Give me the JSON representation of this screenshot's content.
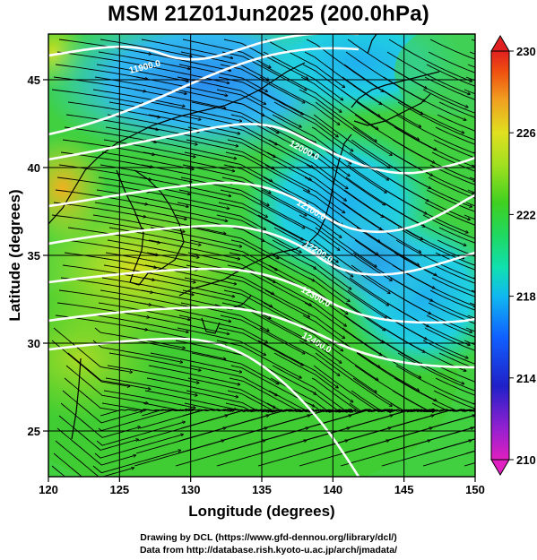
{
  "title": "MSM 21Z01Jun2025 (200.0hPa)",
  "x_axis": {
    "label": "Longitude (degrees)",
    "range": [
      120,
      150
    ],
    "ticks": [
      "120",
      "125",
      "130",
      "135",
      "140",
      "145",
      "150"
    ]
  },
  "y_axis": {
    "label": "Latitude  (degrees)",
    "range": [
      22.4,
      47.6
    ],
    "ticks": [
      "25",
      "30",
      "35",
      "40",
      "45"
    ]
  },
  "colorbar": {
    "range": [
      210,
      230
    ],
    "ticks": [
      "210",
      "214",
      "218",
      "222",
      "226",
      "230"
    ],
    "colors": [
      "#e020c0",
      "#9020d0",
      "#2020c8",
      "#1060ff",
      "#10b8f0",
      "#10e0b0",
      "#20d860",
      "#40d020",
      "#a0e020",
      "#e0e020",
      "#f0a020",
      "#f05010",
      "#e02020"
    ]
  },
  "contour_labels": [
    "11900.0",
    "12000.0",
    "12100.0",
    "12200.0",
    "12300.0",
    "12400.0"
  ],
  "credits": {
    "line1": "Drawing by DCL (https://www.gfd-dennou.org/library/dcl/)",
    "line2": "Data from http://database.rish.kyoto-u.ac.jp/arch/jmadata/"
  }
}
